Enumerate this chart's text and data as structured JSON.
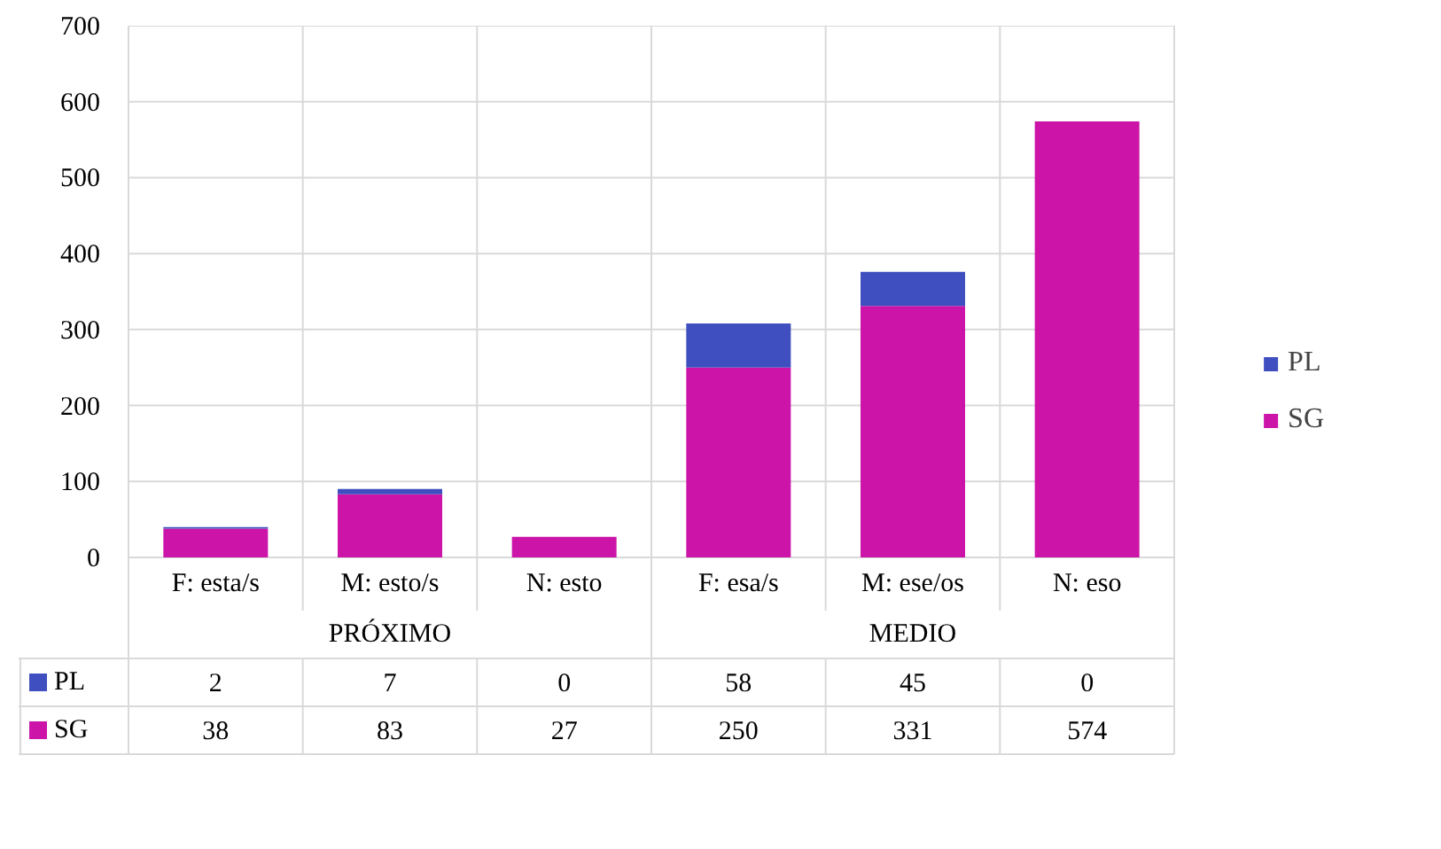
{
  "chart_data": {
    "type": "bar",
    "stacked": true,
    "categories": [
      "F: esta/s",
      "M: esto/s",
      "N: esto",
      "F: esa/s",
      "M: ese/os",
      "N: eso"
    ],
    "series": [
      {
        "name": "SG",
        "color": "#cc14a8",
        "values": [
          38,
          83,
          27,
          250,
          331,
          574
        ]
      },
      {
        "name": "PL",
        "color": "#3f4fbf",
        "values": [
          2,
          7,
          0,
          58,
          45,
          0
        ]
      }
    ],
    "ylim": [
      0,
      700
    ],
    "yticks": [
      0,
      100,
      200,
      300,
      400,
      500,
      600,
      700
    ],
    "grid": true,
    "legend": "right",
    "data_labels": true,
    "annotations": [
      "PRÓXIMO",
      "MEDIO"
    ]
  }
}
